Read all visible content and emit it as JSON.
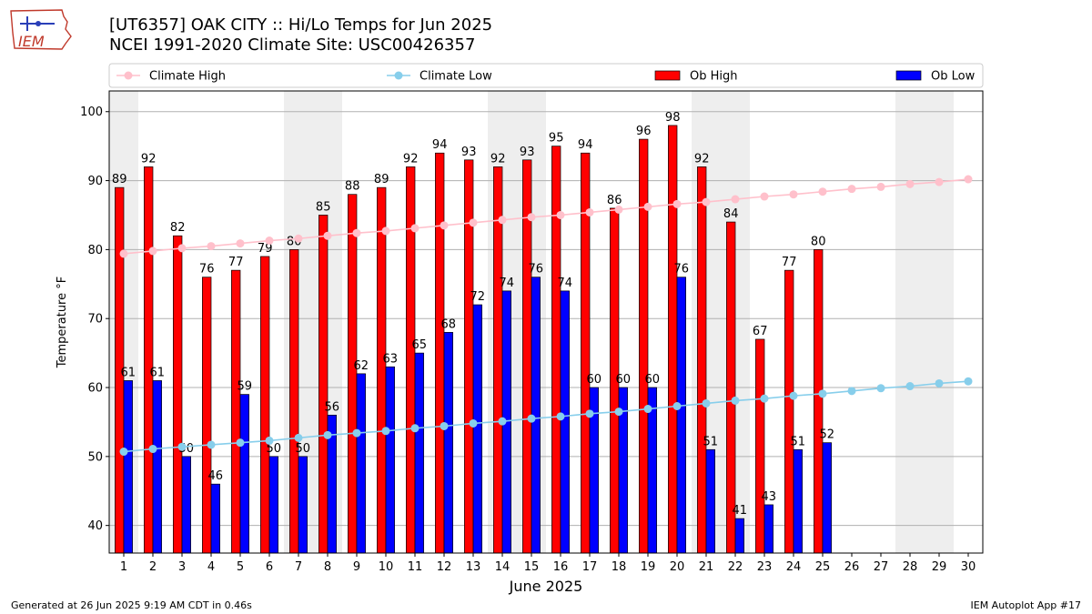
{
  "header": {
    "title_line1": "[UT6357] OAK CITY :: Hi/Lo Temps for Jun 2025",
    "title_line2": "NCEI 1991-2020 Climate Site: USC00426357",
    "logo_text": "IEM"
  },
  "footer": {
    "generated": "Generated at 26 Jun 2025 9:19 AM CDT in 0.46s",
    "app": "IEM Autoplot App #17"
  },
  "colors": {
    "ob_high": "#ff0000",
    "ob_low": "#0000ff",
    "climate_high": "#ffc0cb",
    "climate_low": "#87ceeb",
    "weekend_shade": "#eeeeee",
    "grid": "#b0b0b0"
  },
  "chart_data": {
    "type": "bar",
    "xlabel": "June 2025",
    "ylabel": "Temperature °F",
    "ylim": [
      36,
      103
    ],
    "yticks": [
      40,
      50,
      60,
      70,
      80,
      90,
      100
    ],
    "grid": "horizontal",
    "legend_position": "top",
    "categories": [
      "1",
      "2",
      "3",
      "4",
      "5",
      "6",
      "7",
      "8",
      "9",
      "10",
      "11",
      "12",
      "13",
      "14",
      "15",
      "16",
      "17",
      "18",
      "19",
      "20",
      "21",
      "22",
      "23",
      "24",
      "25",
      "26",
      "27",
      "28",
      "29",
      "30"
    ],
    "shaded_days": [
      1,
      7,
      8,
      14,
      15,
      21,
      22,
      28,
      29
    ],
    "series": [
      {
        "name": "Ob High",
        "kind": "bar",
        "values": [
          89,
          92,
          82,
          76,
          77,
          79,
          80,
          85,
          88,
          89,
          92,
          94,
          93,
          92,
          93,
          95,
          94,
          86,
          96,
          98,
          92,
          84,
          67,
          77,
          80,
          null,
          null,
          null,
          null,
          null
        ]
      },
      {
        "name": "Ob Low",
        "kind": "bar",
        "values": [
          61,
          61,
          50,
          46,
          59,
          50,
          50,
          56,
          62,
          63,
          65,
          68,
          72,
          74,
          76,
          74,
          60,
          60,
          60,
          76,
          51,
          41,
          43,
          51,
          52,
          null,
          null,
          null,
          null,
          null
        ]
      },
      {
        "name": "Climate High",
        "kind": "line",
        "values": [
          79.4,
          79.8,
          80.2,
          80.5,
          80.9,
          81.3,
          81.6,
          82.0,
          82.4,
          82.7,
          83.1,
          83.5,
          83.9,
          84.3,
          84.7,
          85.0,
          85.4,
          85.8,
          86.2,
          86.6,
          86.9,
          87.3,
          87.7,
          88.0,
          88.4,
          88.8,
          89.1,
          89.5,
          89.8,
          90.2
        ]
      },
      {
        "name": "Climate Low",
        "kind": "line",
        "values": [
          50.7,
          51.1,
          51.4,
          51.7,
          52.0,
          52.3,
          52.7,
          53.1,
          53.4,
          53.7,
          54.1,
          54.4,
          54.8,
          55.1,
          55.5,
          55.8,
          56.2,
          56.5,
          56.9,
          57.3,
          57.7,
          58.1,
          58.4,
          58.8,
          59.1,
          59.5,
          59.9,
          60.2,
          60.6,
          60.9
        ]
      }
    ]
  }
}
